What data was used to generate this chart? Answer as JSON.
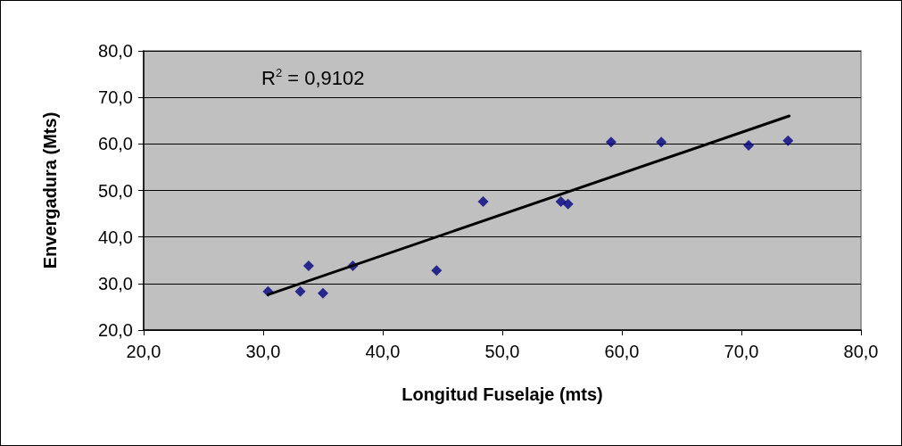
{
  "chart_data": {
    "type": "scatter",
    "xlabel": "Longitud Fuselaje (mts)",
    "ylabel": "Envergadura (Mts)",
    "annotations": [
      "R$^{2}$ = 0,9102"
    ],
    "xlim": [
      20,
      80
    ],
    "ylim": [
      20,
      80
    ],
    "xticks": [
      {
        "value": 20,
        "label": "20,0"
      },
      {
        "value": 30,
        "label": "30,0"
      },
      {
        "value": 40,
        "label": "40,0"
      },
      {
        "value": 50,
        "label": "50,0"
      },
      {
        "value": 60,
        "label": "60,0"
      },
      {
        "value": 70,
        "label": "70,0"
      },
      {
        "value": 80,
        "label": "80,0"
      }
    ],
    "yticks": [
      {
        "value": 20,
        "label": "20,0"
      },
      {
        "value": 30,
        "label": "30,0"
      },
      {
        "value": 40,
        "label": "40,0"
      },
      {
        "value": 50,
        "label": "50,0"
      },
      {
        "value": 60,
        "label": "60,0"
      },
      {
        "value": 70,
        "label": "70,0"
      },
      {
        "value": 80,
        "label": "80,0"
      }
    ],
    "grid": "y",
    "series": [
      {
        "marker": "diamond",
        "color": "#000080",
        "x": [
          30.4,
          33.1,
          33.8,
          35.0,
          37.5,
          44.5,
          48.4,
          54.9,
          55.5,
          59.1,
          63.3,
          70.6,
          73.9
        ],
        "values": [
          28.3,
          28.3,
          33.8,
          27.9,
          33.8,
          32.8,
          47.6,
          47.6,
          47.1,
          60.4,
          60.4,
          59.7,
          60.7
        ]
      },
      {
        "type": "line",
        "marker": "none",
        "line_style": "solid",
        "color": "#000000",
        "x": [
          30.4,
          74.0
        ],
        "values": [
          27.6,
          66.0
        ]
      }
    ]
  }
}
